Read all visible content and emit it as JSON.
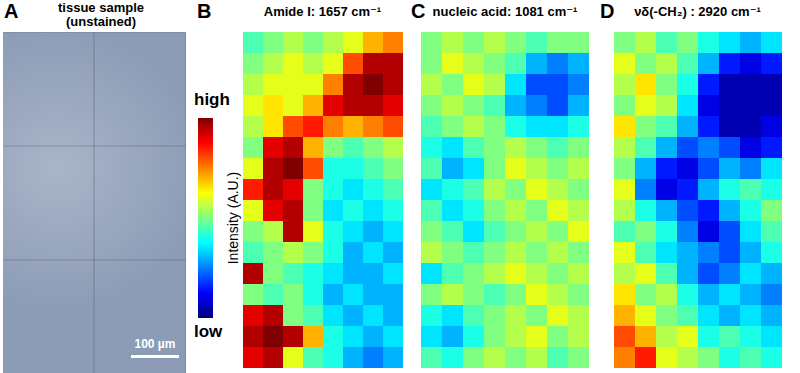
{
  "chart_data": [
    {
      "type": "image",
      "label": "A",
      "title": "tissue sample (unstained)",
      "color": "#8c9cb6",
      "scale_bar": "100 µm"
    },
    {
      "type": "heatmap",
      "label": "B",
      "title": "Amide I: 1657 cm⁻¹",
      "tick_labels": false,
      "colorbar": {
        "range": [
          0,
          1
        ],
        "ticks": [
          {
            "value": 0,
            "label": "low"
          },
          {
            "value": 1,
            "label": "high"
          }
        ],
        "label": "Intensity (A.U.)"
      },
      "cells": [
        [
          0.45,
          0.5,
          0.55,
          0.5,
          0.55,
          0.6,
          0.7,
          0.75
        ],
        [
          0.5,
          0.55,
          0.6,
          0.55,
          0.6,
          0.8,
          0.95,
          0.95
        ],
        [
          0.55,
          0.6,
          0.6,
          0.6,
          0.75,
          0.95,
          1.0,
          0.95
        ],
        [
          0.6,
          0.65,
          0.6,
          0.7,
          0.9,
          0.95,
          0.95,
          0.9
        ],
        [
          0.55,
          0.65,
          0.8,
          0.85,
          0.75,
          0.7,
          0.75,
          0.8
        ],
        [
          0.5,
          0.9,
          0.95,
          0.7,
          0.5,
          0.45,
          0.5,
          0.55
        ],
        [
          0.6,
          0.95,
          1.0,
          0.8,
          0.4,
          0.4,
          0.45,
          0.5
        ],
        [
          0.85,
          0.95,
          0.9,
          0.5,
          0.4,
          0.35,
          0.4,
          0.45
        ],
        [
          0.6,
          0.9,
          0.95,
          0.5,
          0.35,
          0.4,
          0.35,
          0.4
        ],
        [
          0.5,
          0.55,
          0.95,
          0.6,
          0.4,
          0.35,
          0.3,
          0.35
        ],
        [
          0.45,
          0.5,
          0.55,
          0.5,
          0.4,
          0.3,
          0.35,
          0.3
        ],
        [
          0.95,
          0.5,
          0.45,
          0.4,
          0.35,
          0.3,
          0.3,
          0.35
        ],
        [
          0.5,
          0.45,
          0.5,
          0.4,
          0.3,
          0.35,
          0.3,
          0.3
        ],
        [
          0.9,
          0.95,
          0.5,
          0.45,
          0.35,
          0.3,
          0.35,
          0.3
        ],
        [
          0.95,
          1.0,
          0.95,
          0.7,
          0.4,
          0.35,
          0.3,
          0.35
        ],
        [
          0.9,
          0.95,
          0.6,
          0.45,
          0.4,
          0.3,
          0.25,
          0.3
        ]
      ]
    },
    {
      "type": "heatmap",
      "label": "C",
      "title": "nucleic acid: 1081 cm⁻¹",
      "tick_labels": false,
      "cells": [
        [
          0.5,
          0.55,
          0.5,
          0.55,
          0.5,
          0.45,
          0.5,
          0.5
        ],
        [
          0.5,
          0.6,
          0.55,
          0.5,
          0.45,
          0.3,
          0.25,
          0.3
        ],
        [
          0.55,
          0.5,
          0.6,
          0.55,
          0.35,
          0.2,
          0.2,
          0.25
        ],
        [
          0.5,
          0.55,
          0.5,
          0.45,
          0.3,
          0.25,
          0.2,
          0.3
        ],
        [
          0.45,
          0.5,
          0.55,
          0.5,
          0.4,
          0.35,
          0.35,
          0.4
        ],
        [
          0.4,
          0.35,
          0.45,
          0.5,
          0.55,
          0.5,
          0.45,
          0.5
        ],
        [
          0.45,
          0.3,
          0.35,
          0.5,
          0.6,
          0.55,
          0.5,
          0.55
        ],
        [
          0.35,
          0.4,
          0.45,
          0.55,
          0.5,
          0.6,
          0.55,
          0.5
        ],
        [
          0.45,
          0.35,
          0.4,
          0.5,
          0.55,
          0.5,
          0.6,
          0.55
        ],
        [
          0.5,
          0.45,
          0.35,
          0.45,
          0.5,
          0.55,
          0.5,
          0.6
        ],
        [
          0.55,
          0.5,
          0.45,
          0.5,
          0.55,
          0.5,
          0.55,
          0.5
        ],
        [
          0.35,
          0.45,
          0.5,
          0.55,
          0.6,
          0.55,
          0.5,
          0.55
        ],
        [
          0.5,
          0.55,
          0.5,
          0.45,
          0.5,
          0.6,
          0.55,
          0.5
        ],
        [
          0.4,
          0.35,
          0.45,
          0.5,
          0.55,
          0.5,
          0.6,
          0.55
        ],
        [
          0.35,
          0.3,
          0.4,
          0.5,
          0.55,
          0.6,
          0.5,
          0.55
        ],
        [
          0.45,
          0.4,
          0.5,
          0.55,
          0.5,
          0.55,
          0.45,
          0.5
        ]
      ]
    },
    {
      "type": "heatmap",
      "label": "D",
      "title": "νδ(-CH₂) : 2920 cm⁻¹",
      "tick_labels": false,
      "cells": [
        [
          0.5,
          0.55,
          0.45,
          0.5,
          0.4,
          0.35,
          0.3,
          0.35
        ],
        [
          0.6,
          0.5,
          0.55,
          0.45,
          0.3,
          0.15,
          0.1,
          0.15
        ],
        [
          0.55,
          0.65,
          0.5,
          0.4,
          0.15,
          0.05,
          0.05,
          0.05
        ],
        [
          0.5,
          0.6,
          0.55,
          0.35,
          0.1,
          0.05,
          0.05,
          0.05
        ],
        [
          0.65,
          0.5,
          0.45,
          0.3,
          0.15,
          0.05,
          0.05,
          0.1
        ],
        [
          0.55,
          0.45,
          0.3,
          0.2,
          0.25,
          0.2,
          0.1,
          0.15
        ],
        [
          0.5,
          0.3,
          0.15,
          0.1,
          0.2,
          0.3,
          0.25,
          0.35
        ],
        [
          0.6,
          0.25,
          0.1,
          0.15,
          0.3,
          0.4,
          0.45,
          0.4
        ],
        [
          0.55,
          0.4,
          0.3,
          0.2,
          0.15,
          0.3,
          0.4,
          0.5
        ],
        [
          0.45,
          0.5,
          0.4,
          0.25,
          0.1,
          0.2,
          0.35,
          0.45
        ],
        [
          0.6,
          0.45,
          0.35,
          0.3,
          0.25,
          0.2,
          0.3,
          0.4
        ],
        [
          0.55,
          0.6,
          0.45,
          0.3,
          0.2,
          0.25,
          0.35,
          0.3
        ],
        [
          0.65,
          0.5,
          0.55,
          0.4,
          0.3,
          0.35,
          0.3,
          0.25
        ],
        [
          0.7,
          0.6,
          0.5,
          0.45,
          0.35,
          0.3,
          0.35,
          0.3
        ],
        [
          0.8,
          0.7,
          0.55,
          0.6,
          0.4,
          0.45,
          0.4,
          0.35
        ],
        [
          0.75,
          0.85,
          0.6,
          0.55,
          0.5,
          0.4,
          0.45,
          0.4
        ]
      ]
    }
  ]
}
